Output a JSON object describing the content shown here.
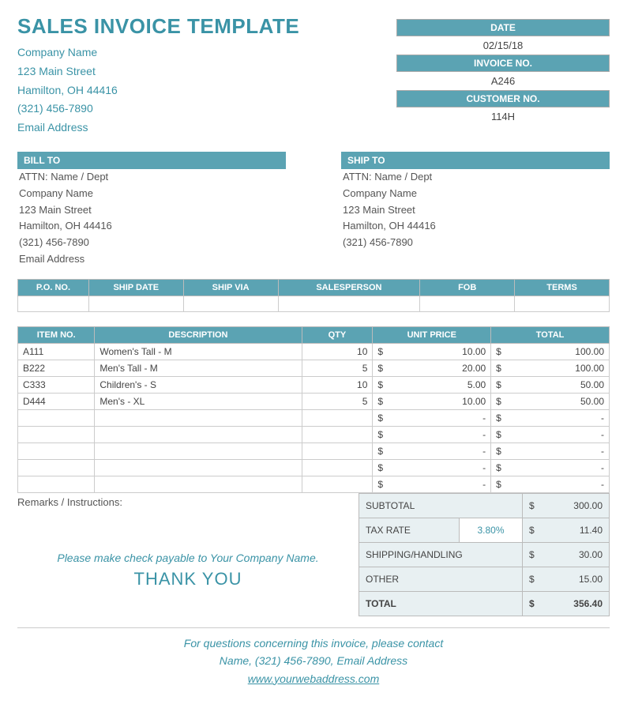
{
  "colors": {
    "accent": "#3a93a6",
    "header_bg": "#5ba3b3",
    "header_text": "#ffffff",
    "totals_bg": "#e8f0f2",
    "border": "#cccccc",
    "text": "#555555",
    "page_bg": "#ffffff"
  },
  "title": "SALES INVOICE TEMPLATE",
  "company": {
    "name": "Company Name",
    "street": "123 Main Street",
    "city": "Hamilton, OH  44416",
    "phone": "(321) 456-7890",
    "email": "Email Address"
  },
  "meta": {
    "date_label": "DATE",
    "date": "02/15/18",
    "invoice_label": "INVOICE NO.",
    "invoice": "A246",
    "customer_label": "CUSTOMER NO.",
    "customer": "114H"
  },
  "bill": {
    "header": "BILL TO",
    "attn": "ATTN: Name / Dept",
    "company": "Company Name",
    "street": "123 Main Street",
    "city": "Hamilton, OH  44416",
    "phone": "(321) 456-7890",
    "email": "Email Address"
  },
  "ship": {
    "header": "SHIP TO",
    "attn": "ATTN: Name / Dept",
    "company": "Company Name",
    "street": "123 Main Street",
    "city": "Hamilton, OH  44416",
    "phone": "(321) 456-7890"
  },
  "order_headers": {
    "po": "P.O. NO.",
    "shipdate": "SHIP DATE",
    "shipvia": "SHIP VIA",
    "salesperson": "SALESPERSON",
    "fob": "FOB",
    "terms": "TERMS"
  },
  "item_headers": {
    "itemno": "ITEM NO.",
    "desc": "DESCRIPTION",
    "qty": "QTY",
    "unit": "UNIT PRICE",
    "total": "TOTAL"
  },
  "items": [
    {
      "no": "A111",
      "desc": "Women's Tall - M",
      "qty": "10",
      "unit": "10.00",
      "total": "100.00"
    },
    {
      "no": "B222",
      "desc": "Men's Tall - M",
      "qty": "5",
      "unit": "20.00",
      "total": "100.00"
    },
    {
      "no": "C333",
      "desc": "Children's - S",
      "qty": "10",
      "unit": "5.00",
      "total": "50.00"
    },
    {
      "no": "D444",
      "desc": "Men's - XL",
      "qty": "5",
      "unit": "10.00",
      "total": "50.00"
    }
  ],
  "empty_item_rows": 5,
  "currency": "$",
  "dash": "-",
  "remarks_label": "Remarks / Instructions:",
  "payable": "Please make check payable to Your Company Name.",
  "thank": "THANK YOU",
  "totals": {
    "subtotal_label": "SUBTOTAL",
    "subtotal": "300.00",
    "tax_label": "TAX RATE",
    "tax_rate": "3.80%",
    "tax_amount": "11.40",
    "shipping_label": "SHIPPING/HANDLING",
    "shipping": "30.00",
    "other_label": "OTHER",
    "other": "15.00",
    "total_label": "TOTAL",
    "total": "356.40"
  },
  "footer": {
    "line1": "For questions concerning this invoice, please contact",
    "line2": "Name, (321) 456-7890, Email Address",
    "web": "www.yourwebaddress.com"
  }
}
